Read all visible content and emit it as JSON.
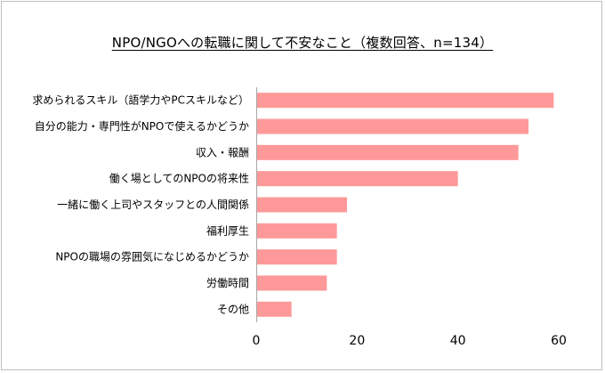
{
  "chart_data": {
    "type": "bar",
    "orientation": "horizontal",
    "title": "NPO/NGOへの転職に関して不安なこと（複数回答、n=134）",
    "categories": [
      "求められるスキル（語学力やPCスキルなど）",
      "自分の能力・専門性がNPOで使えるかどうか",
      "収入・報酬",
      "働く場としてのNPOの将来性",
      "一緒に働く上司やスタッフとの人間関係",
      "福利厚生",
      "NPOの職場の雰囲気になじめるかどうか",
      "労働時間",
      "その他"
    ],
    "values": [
      59,
      54,
      52,
      40,
      18,
      16,
      16,
      14,
      7
    ],
    "xlim": [
      0,
      60
    ],
    "xticks": [
      0,
      20,
      40,
      60
    ],
    "xlabel": "",
    "ylabel": "",
    "grid": false,
    "bar_color": "#ff9999",
    "axis_color": "#a6a6a6"
  }
}
